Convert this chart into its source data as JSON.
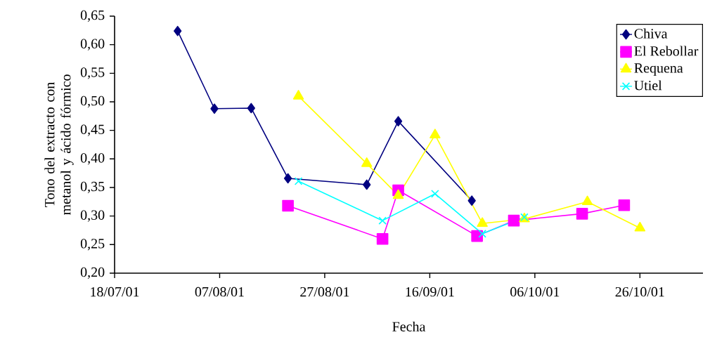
{
  "chart_data": {
    "type": "line",
    "xlabel": "Fecha",
    "ylabel": "Tono del extracto con metanol y ácido fórmico",
    "xlim": [
      "2001-07-18",
      "2001-11-07"
    ],
    "xticks": [
      {
        "value": "2001-07-18",
        "label": "18/07/01"
      },
      {
        "value": "2001-08-07",
        "label": "07/08/01"
      },
      {
        "value": "2001-08-27",
        "label": "27/08/01"
      },
      {
        "value": "2001-09-16",
        "label": "16/09/01"
      },
      {
        "value": "2001-10-06",
        "label": "06/10/01"
      },
      {
        "value": "2001-10-26",
        "label": "26/10/01"
      }
    ],
    "ylim": [
      0.2,
      0.65
    ],
    "yticks": [
      {
        "value": 0.2,
        "label": "0,20"
      },
      {
        "value": 0.25,
        "label": "0,25"
      },
      {
        "value": 0.3,
        "label": "0,30"
      },
      {
        "value": 0.35,
        "label": "0,35"
      },
      {
        "value": 0.4,
        "label": "0,40"
      },
      {
        "value": 0.45,
        "label": "0,45"
      },
      {
        "value": 0.5,
        "label": "0,50"
      },
      {
        "value": 0.55,
        "label": "0,55"
      },
      {
        "value": 0.6,
        "label": "0,60"
      },
      {
        "value": 0.65,
        "label": "0,65"
      }
    ],
    "grid": false,
    "legend": "top right",
    "line_style": "solid",
    "series": [
      {
        "name": "Chiva",
        "color": "#000080",
        "marker": "diamond",
        "x": [
          "2001-07-30",
          "2001-08-06",
          "2001-08-13",
          "2001-08-20",
          "2001-09-04",
          "2001-09-10",
          "2001-09-24"
        ],
        "values": [
          0.624,
          0.488,
          0.489,
          0.366,
          0.355,
          0.466,
          0.327
        ]
      },
      {
        "name": "El Rebollar",
        "color": "#ff00ff",
        "marker": "square",
        "x": [
          "2001-08-20",
          "2001-09-07",
          "2001-09-10",
          "2001-09-25",
          "2001-10-02",
          "2001-10-15",
          "2001-10-23"
        ],
        "values": [
          0.318,
          0.26,
          0.345,
          0.265,
          0.292,
          0.304,
          0.319
        ]
      },
      {
        "name": "Requena",
        "color": "#ffff00",
        "marker": "triangle",
        "x": [
          "2001-08-22",
          "2001-09-04",
          "2001-09-10",
          "2001-09-17",
          "2001-09-26",
          "2001-10-04",
          "2001-10-16",
          "2001-10-26"
        ],
        "values": [
          0.51,
          0.392,
          0.336,
          0.442,
          0.287,
          0.295,
          0.325,
          0.279
        ]
      },
      {
        "name": "Utiel",
        "color": "#00ffff",
        "marker": "cross",
        "x": [
          "2001-08-22",
          "2001-09-07",
          "2001-09-17",
          "2001-09-26",
          "2001-10-04"
        ],
        "values": [
          0.361,
          0.292,
          0.339,
          0.269,
          0.298
        ]
      }
    ]
  }
}
